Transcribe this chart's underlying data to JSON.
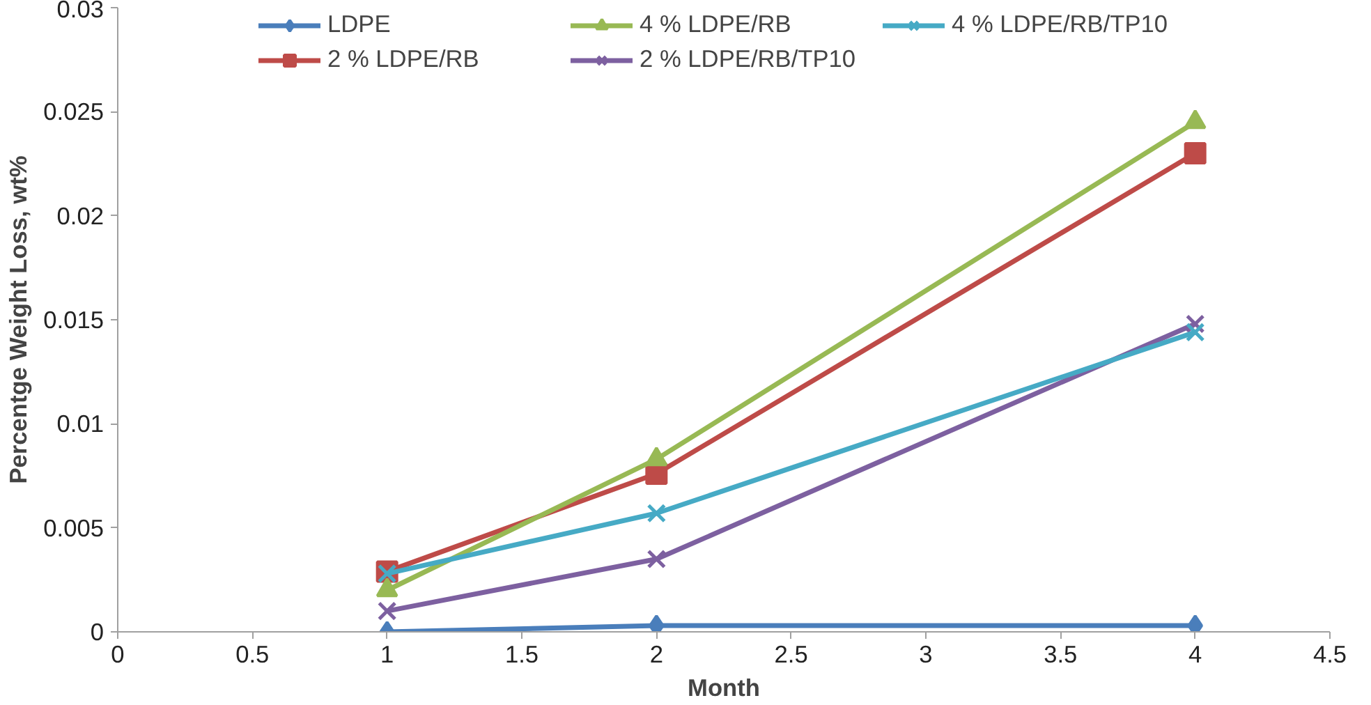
{
  "chart_data": {
    "type": "line",
    "xlabel": "Month",
    "ylabel": "Percentge Weight Loss, wt%",
    "xlim": [
      0,
      4.5
    ],
    "xticks": [
      0,
      0.5,
      1,
      1.5,
      2,
      2.5,
      3,
      3.5,
      4,
      4.5
    ],
    "ylim": [
      0,
      0.03
    ],
    "yticks": [
      0,
      0.005,
      0.01,
      0.015,
      0.02,
      0.025,
      0.03
    ],
    "grid": false,
    "legend": "top",
    "x": [
      1,
      2,
      4
    ],
    "series": [
      {
        "name": "LDPE",
        "color": "#4a7ebb",
        "marker": "diamond",
        "values": [
          0,
          0.0003,
          0.0003
        ]
      },
      {
        "name": "2 % LDPE/RB",
        "color": "#be4b48",
        "marker": "square",
        "values": [
          0.0029,
          0.0076,
          0.023
        ]
      },
      {
        "name": "4 % LDPE/RB",
        "color": "#98b954",
        "marker": "triangle",
        "values": [
          0.002,
          0.0083,
          0.0245
        ]
      },
      {
        "name": "2 % LDPE/RB/TP10",
        "color": "#7d60a0",
        "marker": "cross",
        "values": [
          0.001,
          0.0035,
          0.0148
        ]
      },
      {
        "name": "4 % LDPE/RB/TP10",
        "color": "#46aac5",
        "marker": "cross",
        "values": [
          0.0028,
          0.0057,
          0.0144
        ]
      }
    ]
  }
}
